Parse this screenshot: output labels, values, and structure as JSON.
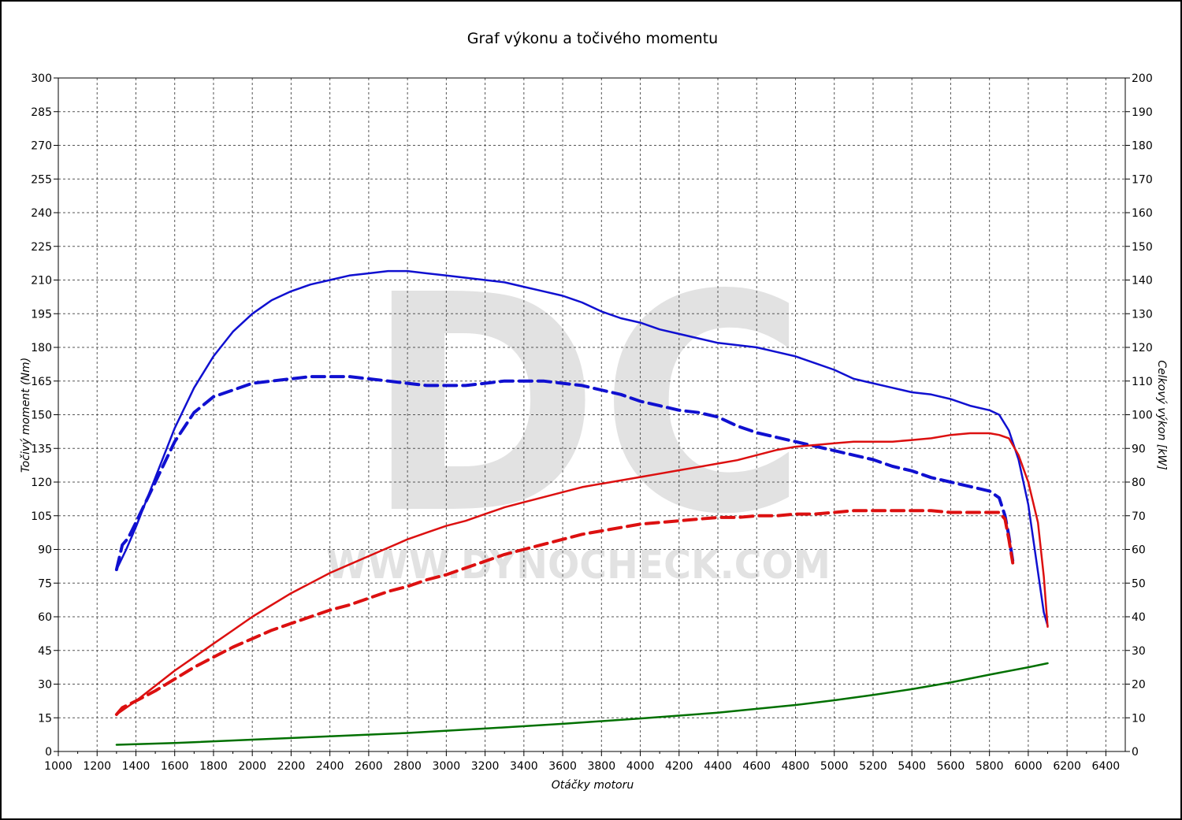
{
  "chart_data": {
    "type": "line",
    "title": "Graf výkonu a točivého momentu",
    "xlabel": "Otáčky motoru",
    "ylabel_left": "Točivý moment (Nm)",
    "ylabel_right": "Celkový výkon [kW]",
    "xlim": [
      1000,
      6500
    ],
    "ylim_left": [
      0,
      300
    ],
    "ylim_right": [
      0,
      200
    ],
    "x_ticks": [
      1000,
      1200,
      1400,
      1600,
      1800,
      2000,
      2200,
      2400,
      2600,
      2800,
      3000,
      3200,
      3400,
      3600,
      3800,
      4000,
      4200,
      4400,
      4600,
      4800,
      5000,
      5200,
      5400,
      5600,
      5800,
      6000,
      6200,
      6400
    ],
    "y_ticks_left": [
      0,
      15,
      30,
      45,
      60,
      75,
      90,
      105,
      120,
      135,
      150,
      165,
      180,
      195,
      210,
      225,
      240,
      255,
      270,
      285,
      300
    ],
    "y_ticks_right": [
      0,
      10,
      20,
      30,
      40,
      50,
      60,
      70,
      80,
      90,
      100,
      110,
      120,
      130,
      140,
      150,
      160,
      170,
      180,
      190,
      200
    ],
    "grid": true,
    "watermark": {
      "logo": "DC",
      "text": "WWW.DYNOCHECK.COM"
    },
    "colors": {
      "torque": "#1010d0",
      "power": "#dc1010",
      "loss": "#007000",
      "grid": "#555555"
    },
    "series": [
      {
        "axis": "left",
        "color": "#1010d0",
        "style": "solid",
        "x": [
          1300,
          1350,
          1400,
          1500,
          1600,
          1700,
          1800,
          1900,
          2000,
          2100,
          2200,
          2300,
          2400,
          2500,
          2600,
          2700,
          2800,
          2900,
          3000,
          3100,
          3200,
          3300,
          3400,
          3500,
          3600,
          3700,
          3800,
          3900,
          4000,
          4100,
          4200,
          4300,
          4400,
          4500,
          4600,
          4700,
          4800,
          4900,
          5000,
          5100,
          5200,
          5300,
          5400,
          5500,
          5600,
          5700,
          5800,
          5850,
          5900,
          5950,
          6000,
          6050,
          6080,
          6100
        ],
        "values": [
          81,
          90,
          100,
          122,
          144,
          162,
          176,
          187,
          195,
          201,
          205,
          208,
          210,
          212,
          213,
          214,
          214,
          213,
          212,
          211,
          210,
          209,
          207,
          205,
          203,
          200,
          196,
          193,
          191,
          188,
          186,
          184,
          182,
          181,
          180,
          178,
          176,
          173,
          170,
          166,
          164,
          162,
          160,
          159,
          157,
          154,
          152,
          150,
          143,
          130,
          110,
          80,
          62,
          56
        ]
      },
      {
        "axis": "left",
        "color": "#1010d0",
        "style": "dashed",
        "x": [
          1300,
          1330,
          1360,
          1400,
          1500,
          1600,
          1700,
          1800,
          1900,
          2000,
          2100,
          2200,
          2300,
          2400,
          2500,
          2600,
          2700,
          2800,
          2900,
          3000,
          3100,
          3200,
          3300,
          3400,
          3500,
          3600,
          3700,
          3800,
          3900,
          4000,
          4100,
          4200,
          4300,
          4400,
          4500,
          4600,
          4700,
          4800,
          4900,
          5000,
          5100,
          5200,
          5300,
          5400,
          5500,
          5600,
          5700,
          5800,
          5850,
          5880,
          5900,
          5920
        ],
        "values": [
          81,
          92,
          95,
          102,
          120,
          138,
          151,
          158,
          161,
          164,
          165,
          166,
          167,
          167,
          167,
          166,
          165,
          164,
          163,
          163,
          163,
          164,
          165,
          165,
          165,
          164,
          163,
          161,
          159,
          156,
          154,
          152,
          151,
          149,
          145,
          142,
          140,
          138,
          136,
          134,
          132,
          130,
          127,
          125,
          122,
          120,
          118,
          116,
          113,
          105,
          96,
          85
        ]
      },
      {
        "axis": "right",
        "color": "#dc1010",
        "style": "solid",
        "x": [
          1300,
          1400,
          1500,
          1600,
          1700,
          1800,
          1900,
          2000,
          2100,
          2200,
          2300,
          2400,
          2500,
          2600,
          2700,
          2800,
          2900,
          3000,
          3100,
          3200,
          3300,
          3400,
          3500,
          3600,
          3700,
          3800,
          3900,
          4000,
          4100,
          4200,
          4300,
          4400,
          4500,
          4600,
          4700,
          4800,
          4900,
          5000,
          5100,
          5200,
          5300,
          5400,
          5500,
          5600,
          5700,
          5800,
          5850,
          5900,
          5950,
          6000,
          6050,
          6080,
          6100
        ],
        "values": [
          11,
          15,
          19.5,
          24,
          28,
          32,
          36,
          40,
          43.5,
          47,
          50,
          53,
          55.5,
          58,
          60.5,
          63,
          65,
          67,
          68.5,
          70.5,
          72.5,
          74,
          75.5,
          77,
          78.5,
          79.5,
          80.5,
          81.5,
          82.5,
          83.5,
          84.5,
          85.5,
          86.5,
          88,
          89.5,
          90.5,
          91,
          91.5,
          92,
          92,
          92,
          92.5,
          93,
          94,
          94.5,
          94.5,
          94,
          93,
          88,
          80,
          68,
          52,
          37
        ]
      },
      {
        "axis": "right",
        "color": "#dc1010",
        "style": "dashed",
        "x": [
          1300,
          1330,
          1400,
          1500,
          1600,
          1700,
          1800,
          1900,
          2000,
          2100,
          2200,
          2300,
          2400,
          2500,
          2600,
          2700,
          2800,
          2900,
          3000,
          3100,
          3200,
          3300,
          3400,
          3500,
          3600,
          3700,
          3800,
          3900,
          4000,
          4100,
          4200,
          4300,
          4400,
          4500,
          4600,
          4700,
          4800,
          4900,
          5000,
          5100,
          5200,
          5300,
          5400,
          5500,
          5600,
          5700,
          5800,
          5850,
          5880,
          5900,
          5920
        ],
        "values": [
          11,
          13,
          15,
          18,
          21.5,
          25,
          28,
          31,
          33.5,
          36,
          38,
          40,
          42,
          43.5,
          45.5,
          47.5,
          49,
          51,
          52.5,
          54.5,
          56.5,
          58.5,
          60,
          61.5,
          63,
          64.5,
          65.5,
          66.5,
          67.5,
          68,
          68.5,
          69,
          69.5,
          69.5,
          70,
          70,
          70.5,
          70.5,
          71,
          71.5,
          71.5,
          71.5,
          71.5,
          71.5,
          71,
          71,
          71,
          71,
          69,
          63,
          56
        ]
      },
      {
        "axis": "right",
        "color": "#007000",
        "style": "solid",
        "x": [
          1300,
          1600,
          2000,
          2400,
          2800,
          3200,
          3600,
          4000,
          4400,
          4800,
          5000,
          5200,
          5400,
          5600,
          5800,
          6000,
          6100
        ],
        "values": [
          2,
          2.5,
          3.5,
          4.5,
          5.5,
          6.8,
          8.2,
          9.8,
          11.5,
          13.8,
          15.2,
          16.8,
          18.5,
          20.5,
          22.8,
          25,
          26.2
        ]
      }
    ]
  }
}
